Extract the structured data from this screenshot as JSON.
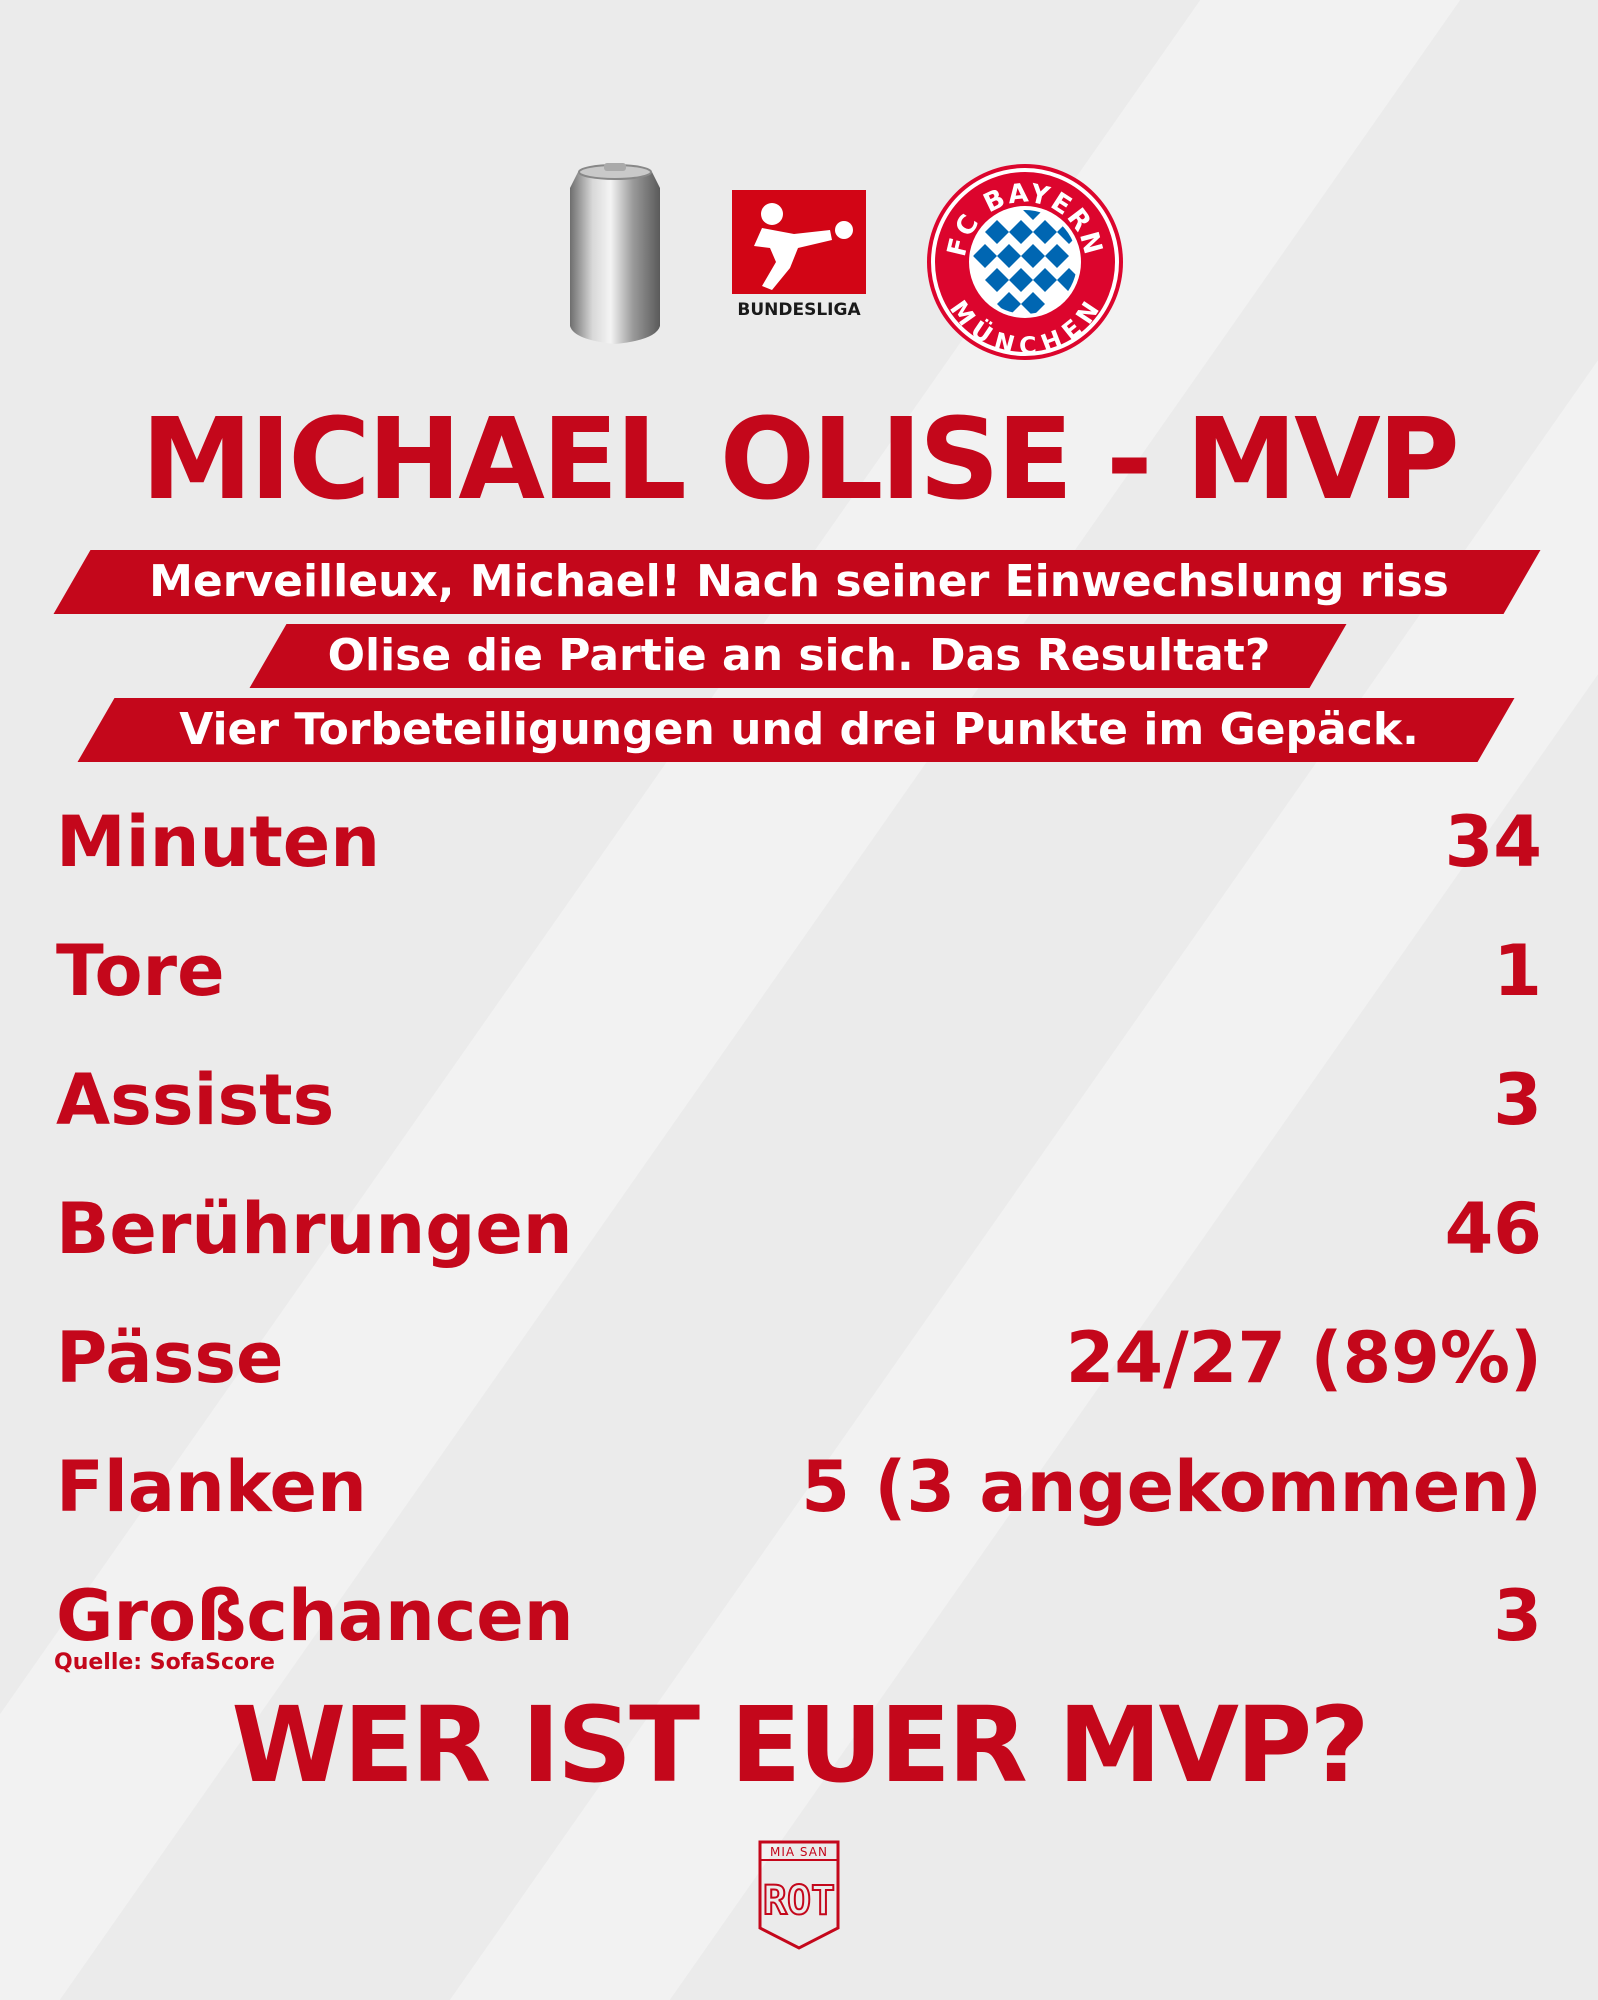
{
  "colors": {
    "accent": "#c4071b",
    "background": "#ebebeb",
    "banner_text": "#ffffff"
  },
  "logos": {
    "can_icon": "aluminium-can-icon",
    "bundesliga_icon": "bundesliga-logo-icon",
    "bundesliga_text": "BUNDESLIGA",
    "fcb_icon": "fc-bayern-crest-icon",
    "fcb_top": "FC BAYERN",
    "fcb_bottom": "MÜNCHEN"
  },
  "title": "MICHAEL OLISE - MVP",
  "intro": [
    "Merveilleux, Michael! Nach seiner Einwechslung riss",
    "Olise die Partie an sich. Das Resultat?",
    "Vier Torbeteiligungen und drei Punkte im Gepäck."
  ],
  "stats": [
    {
      "label": "Minuten",
      "value": "34"
    },
    {
      "label": "Tore",
      "value": "1"
    },
    {
      "label": "Assists",
      "value": "3"
    },
    {
      "label": "Berührungen",
      "value": "46"
    },
    {
      "label": "Pässe",
      "value": "24/27 (89%)"
    },
    {
      "label": "Flanken",
      "value": "5 (3 angekommen)"
    },
    {
      "label": "Großchancen",
      "value": "3"
    }
  ],
  "source": "Quelle: SofaScore",
  "cta": "WER IST EUER MVP?",
  "footer_logo": {
    "top": "MIA SAN",
    "bottom": "ROT"
  }
}
